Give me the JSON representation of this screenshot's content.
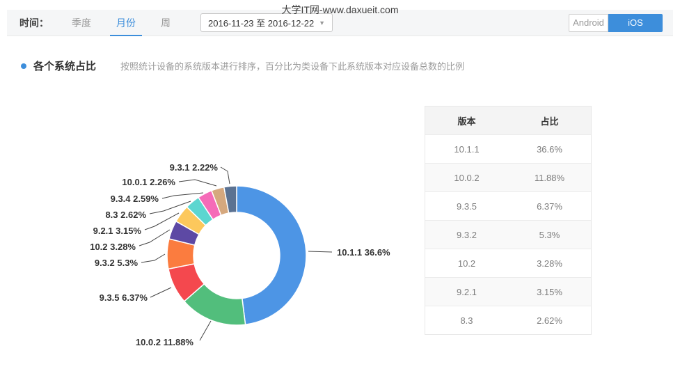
{
  "watermark": "大学IT网-www.daxueit.com",
  "toolbar": {
    "time_label": "时间：",
    "tabs": [
      {
        "label": "季度",
        "active": false
      },
      {
        "label": "月份",
        "active": true
      },
      {
        "label": "周",
        "active": false
      }
    ],
    "date_range": "2016-11-23 至 2016-12-22",
    "platform_toggle": [
      {
        "label": "Android",
        "active": false
      },
      {
        "label": "iOS",
        "active": true
      }
    ]
  },
  "section": {
    "title": "各个系统占比",
    "description": "按照统计设备的系统版本进行排序，百分比为类设备下此系统版本对应设备总数的比例"
  },
  "chart_data": {
    "type": "pie",
    "subtype": "donut",
    "unit": "%",
    "title": "各个系统占比",
    "legend_position": "none",
    "label_format": "name value%",
    "slices": [
      {
        "label": "10.1.1",
        "value": 36.6,
        "color": "#4d95e5"
      },
      {
        "label": "10.0.2",
        "value": 11.88,
        "color": "#52be7c"
      },
      {
        "label": "9.3.5",
        "value": 6.37,
        "color": "#f4484e"
      },
      {
        "label": "9.3.2",
        "value": 5.3,
        "color": "#fb7c3f"
      },
      {
        "label": "10.2",
        "value": 3.28,
        "color": "#5d49a4"
      },
      {
        "label": "9.2.1",
        "value": 3.15,
        "color": "#fcc85c"
      },
      {
        "label": "8.3",
        "value": 2.62,
        "color": "#5cd6d0"
      },
      {
        "label": "9.3.4",
        "value": 2.59,
        "color": "#f56bb8"
      },
      {
        "label": "10.0.1",
        "value": 2.26,
        "color": "#d5a87e"
      },
      {
        "label": "9.3.1",
        "value": 2.22,
        "color": "#5b7292"
      }
    ],
    "note": "slice angles are normalized to the sum of shown values; clockwise from 12 o'clock"
  },
  "table": {
    "headers": [
      "版本",
      "占比"
    ],
    "rows": [
      {
        "version": "10.1.1",
        "share": "36.6%"
      },
      {
        "version": "10.0.2",
        "share": "11.88%"
      },
      {
        "version": "9.3.5",
        "share": "6.37%"
      },
      {
        "version": "9.3.2",
        "share": "5.3%"
      },
      {
        "version": "10.2",
        "share": "3.28%"
      },
      {
        "version": "9.2.1",
        "share": "3.15%"
      },
      {
        "version": "8.3",
        "share": "2.62%"
      }
    ]
  },
  "colors": {
    "accent": "#3d8edb",
    "toolbar_bg": "#f5f6f7",
    "table_header_bg": "#f4f4f4",
    "table_alt_row_bg": "#f9f9f9"
  }
}
